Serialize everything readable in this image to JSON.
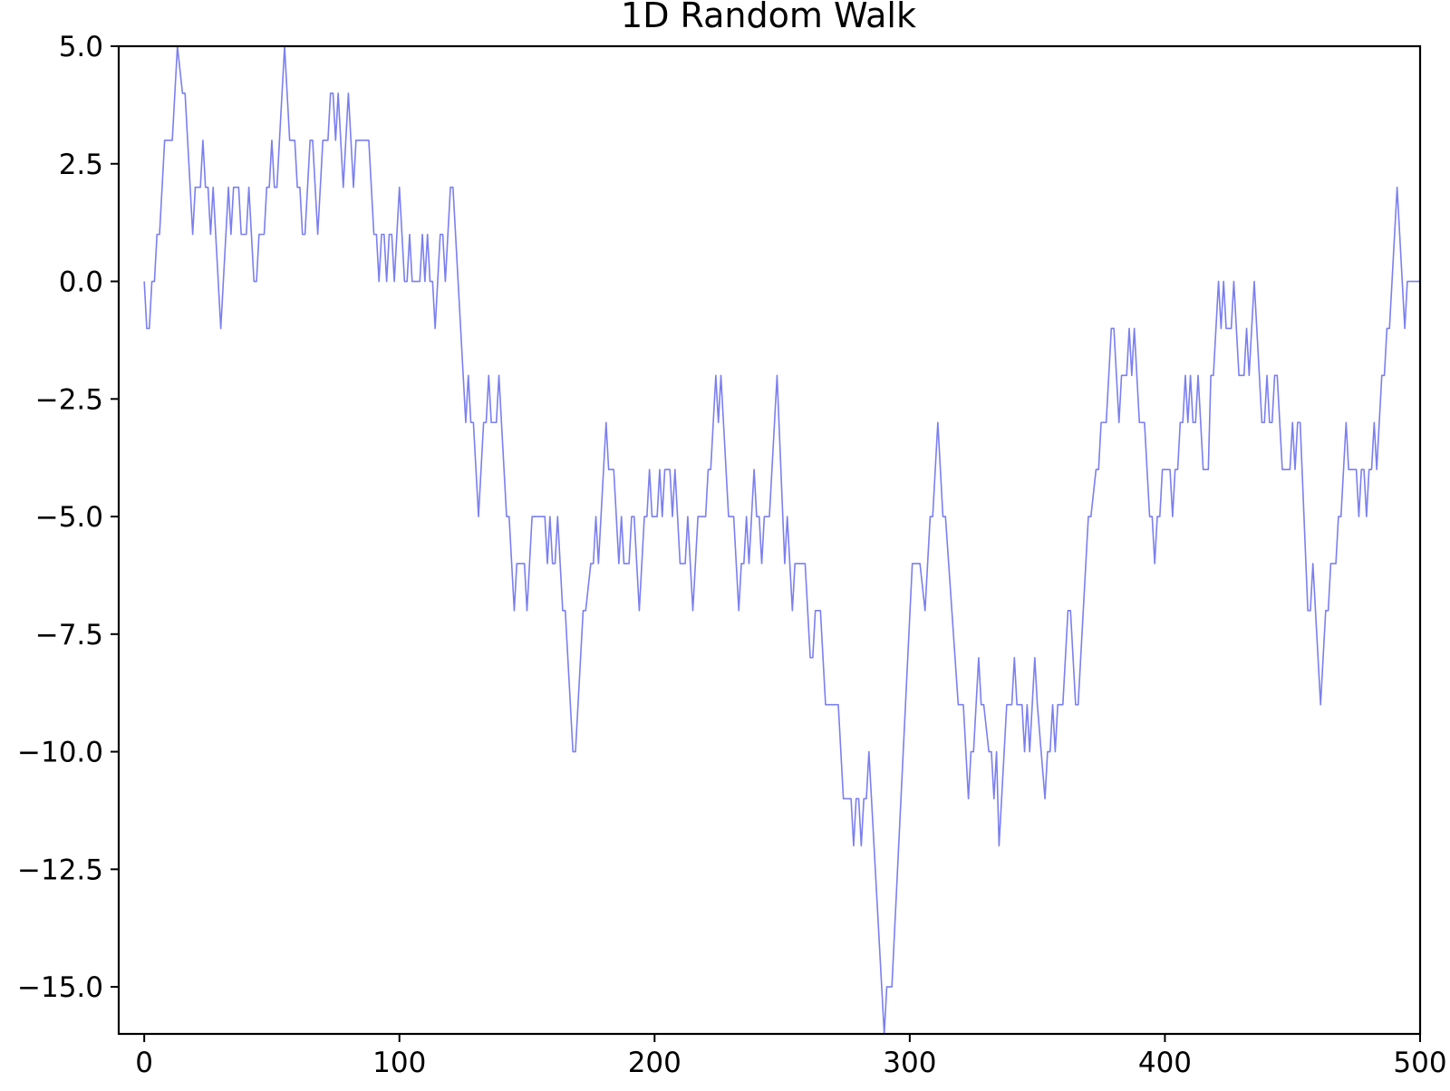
{
  "chart_data": {
    "type": "line",
    "title": "1D Random Walk",
    "xlabel": "",
    "ylabel": "",
    "xlim": [
      -10,
      500
    ],
    "ylim": [
      -16,
      5
    ],
    "grid": false,
    "legend": "none",
    "x_ticks": [
      0,
      100,
      200,
      300,
      400,
      500
    ],
    "y_ticks": [
      5.0,
      2.5,
      0.0,
      -2.5,
      -5.0,
      -7.5,
      -10.0,
      -12.5,
      -15.0
    ],
    "x_tick_labels": [
      "0",
      "100",
      "200",
      "300",
      "400",
      "500"
    ],
    "y_tick_labels": [
      "5.0",
      "2.5",
      "0.0",
      "−2.5",
      "−5.0",
      "−7.5",
      "−10.0",
      "−12.5",
      "−15.0"
    ],
    "series": [
      {
        "color": "#7b7ff0",
        "points": [
          [
            0,
            0
          ],
          [
            1,
            -1
          ],
          [
            2,
            -1
          ],
          [
            3,
            0
          ],
          [
            4,
            0
          ],
          [
            5,
            1
          ],
          [
            6,
            1
          ],
          [
            8,
            3
          ],
          [
            11,
            3
          ],
          [
            13,
            5
          ],
          [
            15,
            4
          ],
          [
            16,
            4
          ],
          [
            19,
            1
          ],
          [
            20,
            2
          ],
          [
            22,
            2
          ],
          [
            23,
            3
          ],
          [
            24,
            2
          ],
          [
            25,
            2
          ],
          [
            26,
            1
          ],
          [
            27,
            2
          ],
          [
            30,
            -1
          ],
          [
            33,
            2
          ],
          [
            34,
            1
          ],
          [
            35,
            2
          ],
          [
            37,
            2
          ],
          [
            38,
            1
          ],
          [
            40,
            1
          ],
          [
            41,
            2
          ],
          [
            43,
            0
          ],
          [
            44,
            0
          ],
          [
            45,
            1
          ],
          [
            47,
            1
          ],
          [
            48,
            2
          ],
          [
            49,
            2
          ],
          [
            50,
            3
          ],
          [
            51,
            2
          ],
          [
            52,
            2
          ],
          [
            55,
            5
          ],
          [
            57,
            3
          ],
          [
            59,
            3
          ],
          [
            60,
            2
          ],
          [
            61,
            2
          ],
          [
            62,
            1
          ],
          [
            63,
            1
          ],
          [
            65,
            3
          ],
          [
            66,
            3
          ],
          [
            68,
            1
          ],
          [
            70,
            3
          ],
          [
            72,
            3
          ],
          [
            73,
            4
          ],
          [
            74,
            4
          ],
          [
            75,
            3
          ],
          [
            76,
            4
          ],
          [
            78,
            2
          ],
          [
            80,
            4
          ],
          [
            82,
            2
          ],
          [
            83,
            3
          ],
          [
            88,
            3
          ],
          [
            90,
            1
          ],
          [
            91,
            1
          ],
          [
            92,
            0
          ],
          [
            93,
            1
          ],
          [
            94,
            1
          ],
          [
            95,
            0
          ],
          [
            96,
            1
          ],
          [
            97,
            1
          ],
          [
            98,
            0
          ],
          [
            100,
            2
          ],
          [
            102,
            0
          ],
          [
            103,
            0
          ],
          [
            104,
            1
          ],
          [
            105,
            0
          ],
          [
            108,
            0
          ],
          [
            109,
            1
          ],
          [
            110,
            0
          ],
          [
            111,
            1
          ],
          [
            112,
            0
          ],
          [
            113,
            0
          ],
          [
            114,
            -1
          ],
          [
            116,
            1
          ],
          [
            117,
            1
          ],
          [
            118,
            0
          ],
          [
            120,
            2
          ],
          [
            121,
            2
          ],
          [
            126,
            -3
          ],
          [
            127,
            -2
          ],
          [
            128,
            -3
          ],
          [
            129,
            -3
          ],
          [
            131,
            -5
          ],
          [
            133,
            -3
          ],
          [
            134,
            -3
          ],
          [
            135,
            -2
          ],
          [
            136,
            -3
          ],
          [
            138,
            -3
          ],
          [
            139,
            -2
          ],
          [
            142,
            -5
          ],
          [
            143,
            -5
          ],
          [
            145,
            -7
          ],
          [
            146,
            -6
          ],
          [
            149,
            -6
          ],
          [
            150,
            -7
          ],
          [
            152,
            -5
          ],
          [
            157,
            -5
          ],
          [
            158,
            -6
          ],
          [
            159,
            -5
          ],
          [
            160,
            -6
          ],
          [
            161,
            -6
          ],
          [
            162,
            -5
          ],
          [
            164,
            -7
          ],
          [
            165,
            -7
          ],
          [
            168,
            -10
          ],
          [
            169,
            -10
          ],
          [
            172,
            -7
          ],
          [
            173,
            -7
          ],
          [
            175,
            -6
          ],
          [
            176,
            -6
          ],
          [
            177,
            -5
          ],
          [
            178,
            -6
          ],
          [
            181,
            -3
          ],
          [
            182,
            -4
          ],
          [
            184,
            -4
          ],
          [
            186,
            -6
          ],
          [
            187,
            -5
          ],
          [
            188,
            -6
          ],
          [
            190,
            -6
          ],
          [
            191,
            -5
          ],
          [
            192,
            -5
          ],
          [
            194,
            -7
          ],
          [
            196,
            -5
          ],
          [
            197,
            -5
          ],
          [
            198,
            -4
          ],
          [
            199,
            -5
          ],
          [
            201,
            -5
          ],
          [
            202,
            -4
          ],
          [
            203,
            -5
          ],
          [
            204,
            -4
          ],
          [
            206,
            -4
          ],
          [
            207,
            -5
          ],
          [
            208,
            -4
          ],
          [
            210,
            -6
          ],
          [
            212,
            -6
          ],
          [
            213,
            -5
          ],
          [
            215,
            -7
          ],
          [
            217,
            -5
          ],
          [
            220,
            -5
          ],
          [
            221,
            -4
          ],
          [
            222,
            -4
          ],
          [
            224,
            -2
          ],
          [
            225,
            -3
          ],
          [
            226,
            -2
          ],
          [
            229,
            -5
          ],
          [
            231,
            -5
          ],
          [
            233,
            -7
          ],
          [
            234,
            -6
          ],
          [
            235,
            -6
          ],
          [
            236,
            -5
          ],
          [
            237,
            -6
          ],
          [
            239,
            -4
          ],
          [
            240,
            -5
          ],
          [
            241,
            -5
          ],
          [
            242,
            -6
          ],
          [
            243,
            -5
          ],
          [
            245,
            -5
          ],
          [
            248,
            -2
          ],
          [
            251,
            -6
          ],
          [
            252,
            -5
          ],
          [
            254,
            -7
          ],
          [
            255,
            -6
          ],
          [
            259,
            -6
          ],
          [
            261,
            -8
          ],
          [
            262,
            -8
          ],
          [
            263,
            -7
          ],
          [
            265,
            -7
          ],
          [
            267,
            -9
          ],
          [
            272,
            -9
          ],
          [
            274,
            -11
          ],
          [
            277,
            -11
          ],
          [
            278,
            -12
          ],
          [
            279,
            -11
          ],
          [
            280,
            -11
          ],
          [
            281,
            -12
          ],
          [
            282,
            -11
          ],
          [
            283,
            -11
          ],
          [
            284,
            -10
          ],
          [
            290,
            -16
          ],
          [
            291,
            -15
          ],
          [
            293,
            -15
          ],
          [
            301,
            -6
          ],
          [
            304,
            -6
          ],
          [
            306,
            -7
          ],
          [
            308,
            -5
          ],
          [
            309,
            -5
          ],
          [
            311,
            -3
          ],
          [
            313,
            -5
          ],
          [
            314,
            -5
          ],
          [
            319,
            -9
          ],
          [
            321,
            -9
          ],
          [
            323,
            -11
          ],
          [
            324,
            -10
          ],
          [
            325,
            -10
          ],
          [
            327,
            -8
          ],
          [
            328,
            -9
          ],
          [
            329,
            -9
          ],
          [
            331,
            -10
          ],
          [
            332,
            -10
          ],
          [
            333,
            -11
          ],
          [
            334,
            -10
          ],
          [
            335,
            -12
          ],
          [
            338,
            -9
          ],
          [
            340,
            -9
          ],
          [
            341,
            -8
          ],
          [
            342,
            -9
          ],
          [
            344,
            -9
          ],
          [
            345,
            -10
          ],
          [
            346,
            -9
          ],
          [
            347,
            -10
          ],
          [
            349,
            -8
          ],
          [
            350,
            -9
          ],
          [
            353,
            -11
          ],
          [
            354,
            -10
          ],
          [
            355,
            -10
          ],
          [
            356,
            -9
          ],
          [
            357,
            -10
          ],
          [
            358,
            -9
          ],
          [
            360,
            -9
          ],
          [
            362,
            -7
          ],
          [
            363,
            -7
          ],
          [
            365,
            -9
          ],
          [
            366,
            -9
          ],
          [
            370,
            -5
          ],
          [
            371,
            -5
          ],
          [
            373,
            -4
          ],
          [
            374,
            -4
          ],
          [
            375,
            -3
          ],
          [
            377,
            -3
          ],
          [
            379,
            -1
          ],
          [
            380,
            -1
          ],
          [
            382,
            -3
          ],
          [
            383,
            -2
          ],
          [
            385,
            -2
          ],
          [
            386,
            -1
          ],
          [
            387,
            -2
          ],
          [
            388,
            -1
          ],
          [
            390,
            -3
          ],
          [
            392,
            -3
          ],
          [
            394,
            -5
          ],
          [
            395,
            -5
          ],
          [
            396,
            -6
          ],
          [
            397,
            -5
          ],
          [
            398,
            -5
          ],
          [
            399,
            -4
          ],
          [
            402,
            -4
          ],
          [
            403,
            -5
          ],
          [
            404,
            -4
          ],
          [
            405,
            -4
          ],
          [
            406,
            -3
          ],
          [
            407,
            -3
          ],
          [
            408,
            -2
          ],
          [
            409,
            -3
          ],
          [
            410,
            -2
          ],
          [
            411,
            -3
          ],
          [
            412,
            -3
          ],
          [
            413,
            -2
          ],
          [
            415,
            -4
          ],
          [
            417,
            -4
          ],
          [
            418,
            -2
          ],
          [
            419,
            -2
          ],
          [
            421,
            0
          ],
          [
            422,
            -1
          ],
          [
            423,
            0
          ],
          [
            424,
            -1
          ],
          [
            426,
            -1
          ],
          [
            427,
            0
          ],
          [
            429,
            -2
          ],
          [
            431,
            -2
          ],
          [
            432,
            -1
          ],
          [
            433,
            -2
          ],
          [
            435,
            0
          ],
          [
            438,
            -3
          ],
          [
            439,
            -3
          ],
          [
            440,
            -2
          ],
          [
            441,
            -3
          ],
          [
            442,
            -3
          ],
          [
            443,
            -2
          ],
          [
            444,
            -2
          ],
          [
            446,
            -4
          ],
          [
            449,
            -4
          ],
          [
            450,
            -3
          ],
          [
            451,
            -4
          ],
          [
            452,
            -3
          ],
          [
            453,
            -3
          ],
          [
            456,
            -7
          ],
          [
            457,
            -7
          ],
          [
            458,
            -6
          ],
          [
            461,
            -9
          ],
          [
            463,
            -7
          ],
          [
            464,
            -7
          ],
          [
            465,
            -6
          ],
          [
            467,
            -6
          ],
          [
            468,
            -5
          ],
          [
            469,
            -5
          ],
          [
            471,
            -3
          ],
          [
            472,
            -4
          ],
          [
            475,
            -4
          ],
          [
            476,
            -5
          ],
          [
            477,
            -4
          ],
          [
            478,
            -4
          ],
          [
            479,
            -5
          ],
          [
            480,
            -4
          ],
          [
            481,
            -4
          ],
          [
            482,
            -3
          ],
          [
            483,
            -4
          ],
          [
            485,
            -2
          ],
          [
            486,
            -2
          ],
          [
            487,
            -1
          ],
          [
            488,
            -1
          ],
          [
            491,
            2
          ],
          [
            494,
            -1
          ],
          [
            495,
            0
          ],
          [
            500,
            0
          ]
        ]
      }
    ]
  }
}
